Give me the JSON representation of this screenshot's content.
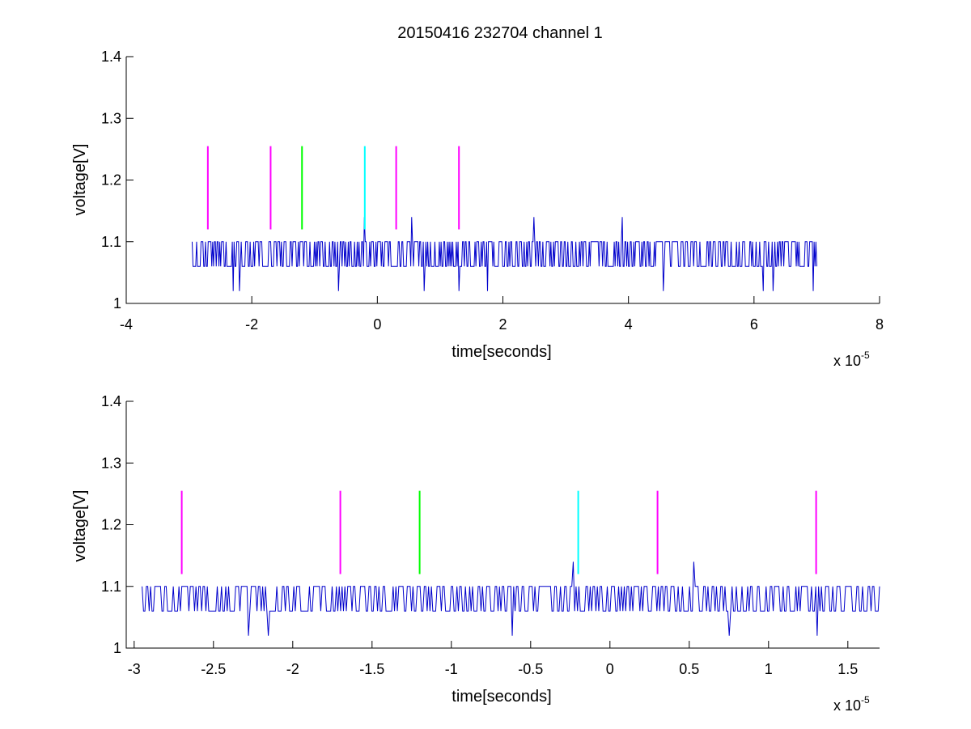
{
  "chart_data": [
    {
      "type": "line",
      "title": "20150416 232704 channel 1",
      "xlabel": "time[seconds]",
      "ylabel": "voltage[V]",
      "x_multiplier": "x 10",
      "x_multiplier_exponent": "-5",
      "xlim": [
        -4,
        8
      ],
      "ylim": [
        1,
        1.4
      ],
      "x_tick_labels": [
        "-4",
        "-2",
        "0",
        "2",
        "4",
        "6",
        "8"
      ],
      "y_tick_labels": [
        "1",
        "1.1",
        "1.2",
        "1.3",
        "1.4"
      ],
      "x_ticks": [
        -4,
        -2,
        0,
        2,
        4,
        6,
        8
      ],
      "y_ticks": [
        1,
        1.1,
        1.2,
        1.3,
        1.4
      ],
      "grid": false,
      "signal": {
        "color": "#0000cc",
        "x_range": [
          -2.95,
          7.0
        ],
        "levels": [
          1.06,
          1.1
        ],
        "spikes_up": [
          [
            -0.2,
            1.14
          ],
          [
            0.55,
            1.14
          ],
          [
            2.5,
            1.14
          ],
          [
            3.9,
            1.14
          ]
        ],
        "spikes_down": [
          [
            -2.3,
            1.02
          ],
          [
            -2.2,
            1.02
          ],
          [
            -0.62,
            1.02
          ],
          [
            0.75,
            1.02
          ],
          [
            1.3,
            1.02
          ],
          [
            1.75,
            1.02
          ],
          [
            4.55,
            1.02
          ],
          [
            6.15,
            1.02
          ],
          [
            6.3,
            1.02
          ],
          [
            6.95,
            1.02
          ]
        ]
      },
      "markers": [
        {
          "x": -2.7,
          "y0": 1.12,
          "y1": 1.255,
          "color": "#ff00ff"
        },
        {
          "x": -1.7,
          "y0": 1.12,
          "y1": 1.255,
          "color": "#ff00ff"
        },
        {
          "x": -1.2,
          "y0": 1.12,
          "y1": 1.255,
          "color": "#00ff00"
        },
        {
          "x": -0.2,
          "y0": 1.12,
          "y1": 1.255,
          "color": "#00ffff"
        },
        {
          "x": 0.3,
          "y0": 1.12,
          "y1": 1.255,
          "color": "#ff00ff"
        },
        {
          "x": 1.3,
          "y0": 1.12,
          "y1": 1.255,
          "color": "#ff00ff"
        }
      ]
    },
    {
      "type": "line",
      "title": "",
      "xlabel": "time[seconds]",
      "ylabel": "voltage[V]",
      "x_multiplier": "x 10",
      "x_multiplier_exponent": "-5",
      "xlim": [
        -3.05,
        1.7
      ],
      "ylim": [
        1,
        1.4
      ],
      "x_tick_labels": [
        "-3",
        "-2.5",
        "-2",
        "-1.5",
        "-1",
        "-0.5",
        "0",
        "0.5",
        "1",
        "1.5"
      ],
      "y_tick_labels": [
        "1",
        "1.1",
        "1.2",
        "1.3",
        "1.4"
      ],
      "x_ticks": [
        -3,
        -2.5,
        -2,
        -1.5,
        -1,
        -0.5,
        0,
        0.5,
        1,
        1.5
      ],
      "y_ticks": [
        1,
        1.1,
        1.2,
        1.3,
        1.4
      ],
      "grid": false,
      "signal": {
        "color": "#0000cc",
        "x_range": [
          -2.95,
          1.7
        ],
        "levels": [
          1.06,
          1.1
        ],
        "spikes_up": [
          [
            -0.23,
            1.14
          ],
          [
            0.53,
            1.14
          ]
        ],
        "spikes_down": [
          [
            -2.28,
            1.02
          ],
          [
            -2.15,
            1.02
          ],
          [
            -0.62,
            1.02
          ],
          [
            0.75,
            1.02
          ],
          [
            1.31,
            1.02
          ]
        ]
      },
      "markers": [
        {
          "x": -2.7,
          "y0": 1.12,
          "y1": 1.255,
          "color": "#ff00ff"
        },
        {
          "x": -1.7,
          "y0": 1.12,
          "y1": 1.255,
          "color": "#ff00ff"
        },
        {
          "x": -1.2,
          "y0": 1.12,
          "y1": 1.255,
          "color": "#00ff00"
        },
        {
          "x": -0.2,
          "y0": 1.12,
          "y1": 1.255,
          "color": "#00ffff"
        },
        {
          "x": 0.3,
          "y0": 1.12,
          "y1": 1.255,
          "color": "#ff00ff"
        },
        {
          "x": 1.3,
          "y0": 1.12,
          "y1": 1.255,
          "color": "#ff00ff"
        }
      ]
    }
  ]
}
